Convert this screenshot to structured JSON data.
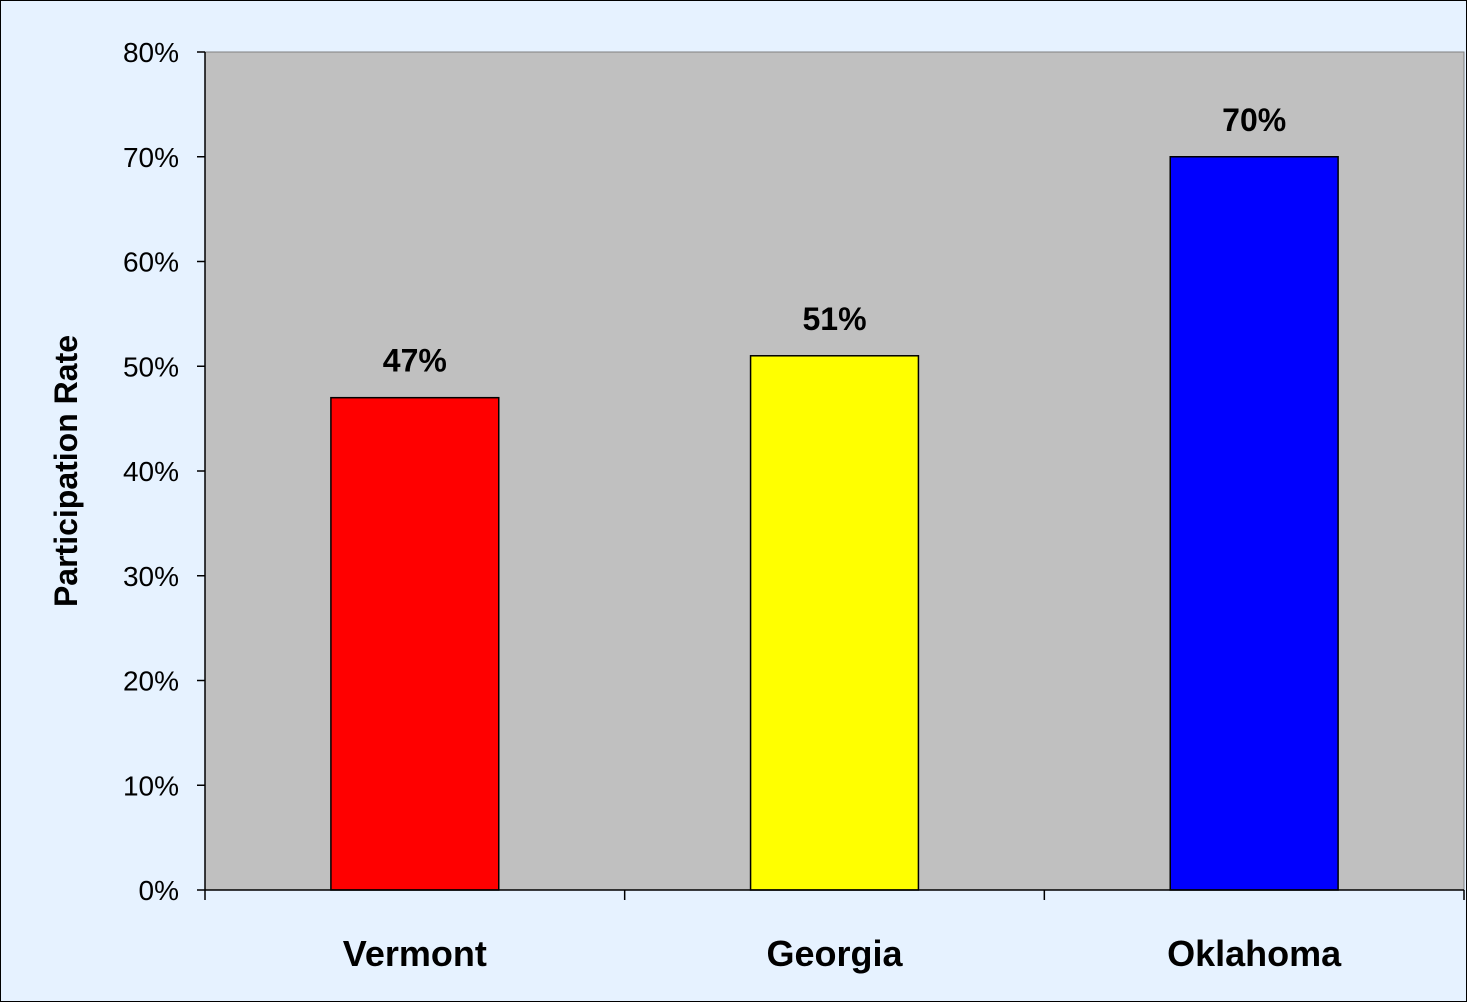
{
  "chart_data": {
    "type": "bar",
    "categories": [
      "Vermont",
      "Georgia",
      "Oklahoma"
    ],
    "values": [
      0.47,
      0.51,
      0.7
    ],
    "data_labels": [
      "47%",
      "51%",
      "70%"
    ],
    "bar_colors": [
      "#ff0000",
      "#ffff00",
      "#0000ff"
    ],
    "ylabel": "Participation Rate",
    "xlabel": "",
    "ylim": [
      0,
      0.8
    ],
    "y_ticks": [
      0,
      0.1,
      0.2,
      0.3,
      0.4,
      0.5,
      0.6,
      0.7,
      0.8
    ],
    "y_tick_labels": [
      "0%",
      "10%",
      "20%",
      "30%",
      "40%",
      "50%",
      "60%",
      "70%",
      "80%"
    ],
    "grid": false,
    "legend": "none",
    "plot_background": "#c0c0c0",
    "page_background": "#e6f2ff"
  }
}
